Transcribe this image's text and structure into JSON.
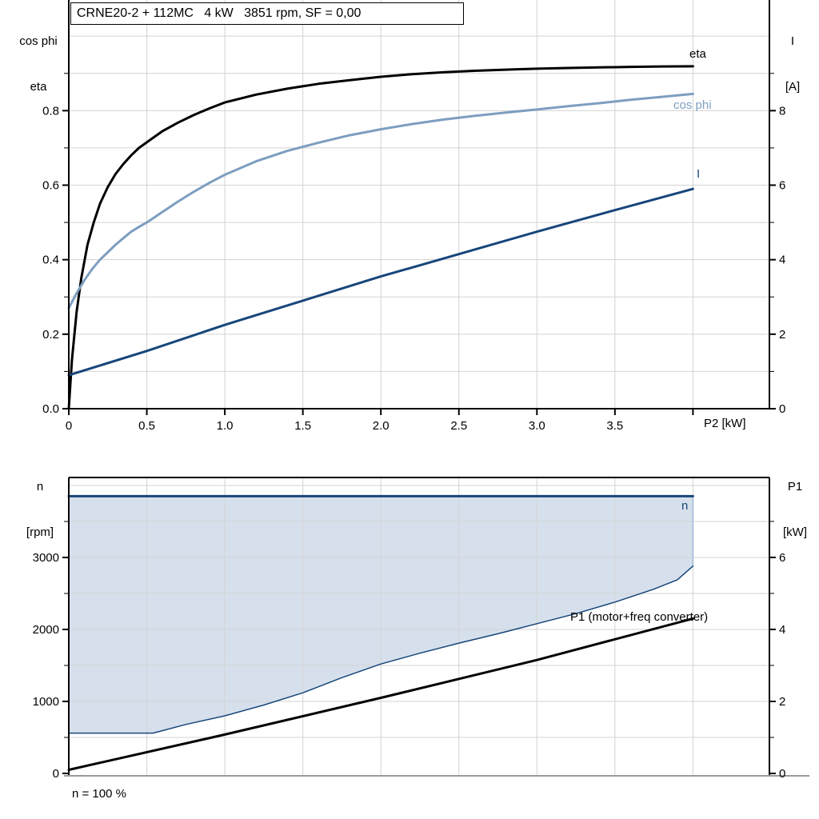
{
  "title": "CRNE20-2 + 112MC   4 kW   3851 rpm, SF = 0,00",
  "top_chart": {
    "y_left_label": [
      "cos phi",
      "eta"
    ],
    "y_right_label": [
      "I",
      "[A]"
    ],
    "x_label": "P2 [kW]",
    "curve_labels": {
      "eta": "eta",
      "cos_phi": "cos phi",
      "current": "I"
    }
  },
  "bottom_chart": {
    "y_left_label": [
      "n",
      "[rpm]"
    ],
    "y_right_label": [
      "P1",
      "[kW]"
    ],
    "curve_labels": {
      "n": "n",
      "p1": "P1 (motor+freq converter)"
    },
    "footnote": "n = 100 %"
  },
  "colors": {
    "black": "#000000",
    "dark_blue": "#17467A",
    "light_blue": "#7D9EC0",
    "area_fill": "#D6E0EC",
    "area_edge": "#9FB8D4",
    "grid": "#D3D3D3",
    "axis_gray": "#999999"
  },
  "chart_data": [
    {
      "type": "line",
      "title": "CRNE20-2 + 112MC   4 kW   3851 rpm, SF = 0,00",
      "xlabel": "P2 [kW]",
      "ylabel_left": "cos phi, eta",
      "ylabel_right": "I [A]",
      "xlim": [
        0,
        4.49
      ],
      "ylim_left": [
        0,
        1.097
      ],
      "ylim_right": [
        0,
        10.97
      ],
      "grid": true,
      "x_ticks": {
        "major": [
          0,
          0.5,
          1,
          1.5,
          2,
          2.5,
          3,
          3.5,
          4
        ],
        "labels": [
          "0",
          "0.5",
          "1.0",
          "1.5",
          "2.0",
          "2.5",
          "3.0",
          "3.5",
          ""
        ]
      },
      "y_left_ticks": {
        "major": [
          0,
          0.2,
          0.4,
          0.6,
          0.8
        ],
        "labels": [
          "0.0",
          "0.2",
          "0.4",
          "0.6",
          "0.8"
        ],
        "minor": [
          0.1,
          0.3,
          0.5,
          0.7,
          0.9
        ]
      },
      "y_right_ticks": {
        "major": [
          0,
          2,
          4,
          6,
          8
        ],
        "labels": [
          "0",
          "2",
          "4",
          "6",
          "8"
        ],
        "minor": [
          1,
          3,
          5,
          7,
          9
        ]
      },
      "grid_x_values": [
        0.5,
        1,
        1.5,
        2,
        2.5,
        3,
        3.5,
        4
      ],
      "grid_y_values": [
        0.1,
        0.2,
        0.3,
        0.4,
        0.5,
        0.6,
        0.7,
        0.8,
        0.9,
        1.0
      ],
      "series": [
        {
          "name": "eta",
          "axis": "left",
          "color_key": "black",
          "width": 3,
          "points": [
            [
              0,
              0
            ],
            [
              0.02,
              0.13
            ],
            [
              0.05,
              0.26
            ],
            [
              0.08,
              0.35
            ],
            [
              0.12,
              0.44
            ],
            [
              0.16,
              0.5
            ],
            [
              0.2,
              0.55
            ],
            [
              0.25,
              0.595
            ],
            [
              0.3,
              0.63
            ],
            [
              0.35,
              0.657
            ],
            [
              0.4,
              0.68
            ],
            [
              0.45,
              0.7
            ],
            [
              0.5,
              0.715
            ],
            [
              0.6,
              0.745
            ],
            [
              0.7,
              0.768
            ],
            [
              0.8,
              0.788
            ],
            [
              0.9,
              0.806
            ],
            [
              1.0,
              0.822
            ],
            [
              1.2,
              0.843
            ],
            [
              1.4,
              0.859
            ],
            [
              1.6,
              0.872
            ],
            [
              1.8,
              0.882
            ],
            [
              2.0,
              0.891
            ],
            [
              2.2,
              0.898
            ],
            [
              2.4,
              0.903
            ],
            [
              2.6,
              0.907
            ],
            [
              2.8,
              0.91
            ],
            [
              3.0,
              0.9125
            ],
            [
              3.2,
              0.9145
            ],
            [
              3.4,
              0.916
            ],
            [
              3.6,
              0.9175
            ],
            [
              3.8,
              0.9185
            ],
            [
              4.0,
              0.919
            ]
          ]
        },
        {
          "name": "cos phi",
          "axis": "left",
          "color_key": "light_blue",
          "width": 3,
          "points": [
            [
              0,
              0.27
            ],
            [
              0.05,
              0.31
            ],
            [
              0.1,
              0.345
            ],
            [
              0.15,
              0.375
            ],
            [
              0.2,
              0.4
            ],
            [
              0.25,
              0.42
            ],
            [
              0.3,
              0.44
            ],
            [
              0.35,
              0.458
            ],
            [
              0.4,
              0.475
            ],
            [
              0.45,
              0.488
            ],
            [
              0.5,
              0.5
            ],
            [
              0.6,
              0.528
            ],
            [
              0.7,
              0.556
            ],
            [
              0.8,
              0.582
            ],
            [
              0.9,
              0.606
            ],
            [
              1.0,
              0.628
            ],
            [
              1.2,
              0.664
            ],
            [
              1.4,
              0.692
            ],
            [
              1.6,
              0.714
            ],
            [
              1.8,
              0.734
            ],
            [
              2.0,
              0.75
            ],
            [
              2.2,
              0.764
            ],
            [
              2.4,
              0.776
            ],
            [
              2.6,
              0.786
            ],
            [
              2.8,
              0.795
            ],
            [
              3.0,
              0.803
            ],
            [
              3.2,
              0.812
            ],
            [
              3.4,
              0.82
            ],
            [
              3.6,
              0.829
            ],
            [
              3.8,
              0.837
            ],
            [
              4.0,
              0.845
            ]
          ]
        },
        {
          "name": "I",
          "axis": "right",
          "color_key": "dark_blue",
          "width": 3,
          "points": [
            [
              0,
              0.9
            ],
            [
              0.5,
              1.55
            ],
            [
              1.0,
              2.25
            ],
            [
              1.5,
              2.9
            ],
            [
              2.0,
              3.55
            ],
            [
              2.5,
              4.15
            ],
            [
              3.0,
              4.75
            ],
            [
              3.5,
              5.33
            ],
            [
              4.0,
              5.9
            ]
          ]
        }
      ]
    },
    {
      "type": "line",
      "title": "",
      "xlabel": "",
      "ylabel_left": "n [rpm]",
      "ylabel_right": "P1 [kW]",
      "xlim": [
        0,
        4.49
      ],
      "ylim_left": [
        0,
        4111
      ],
      "ylim_right": [
        0,
        8.22
      ],
      "grid": true,
      "x_ticks": {
        "major": [],
        "labels": []
      },
      "y_left_ticks": {
        "major": [
          0,
          1000,
          2000,
          3000
        ],
        "labels": [
          "0",
          "1000",
          "2000",
          "3000"
        ],
        "minor": [
          500,
          1500,
          2500,
          3500
        ]
      },
      "y_right_ticks": {
        "major": [
          0,
          2,
          4,
          6
        ],
        "labels": [
          "0",
          "2",
          "4",
          "6"
        ],
        "minor": [
          1,
          3,
          5,
          7
        ]
      },
      "grid_x_values": [
        0.5,
        1,
        1.5,
        2,
        2.5,
        3,
        3.5,
        4
      ],
      "grid_y_values": [
        500,
        1000,
        1500,
        2000,
        2500,
        3000,
        3500,
        4000
      ],
      "area": {
        "upper_rpm": 3851,
        "fill_key": "area_fill",
        "right_edge_key": "area_edge",
        "lower_points": [
          [
            0,
            560
          ],
          [
            0.54,
            560
          ],
          [
            0.75,
            680
          ],
          [
            1.0,
            800
          ],
          [
            1.25,
            950
          ],
          [
            1.5,
            1120
          ],
          [
            1.75,
            1330
          ],
          [
            2.0,
            1520
          ],
          [
            2.25,
            1670
          ],
          [
            2.5,
            1810
          ],
          [
            2.75,
            1940
          ],
          [
            3.0,
            2080
          ],
          [
            3.25,
            2220
          ],
          [
            3.5,
            2380
          ],
          [
            3.75,
            2560
          ],
          [
            3.9,
            2690
          ],
          [
            4.0,
            2880
          ]
        ]
      },
      "series": [
        {
          "name": "n",
          "axis": "left",
          "color_key": "dark_blue",
          "width": 3,
          "points": [
            [
              0,
              3851
            ],
            [
              4,
              3851
            ]
          ]
        },
        {
          "name": "n min boundary",
          "axis": "left",
          "color_key": "dark_blue",
          "width": 1.5,
          "points": [
            [
              0,
              560
            ],
            [
              0.54,
              560
            ],
            [
              0.75,
              680
            ],
            [
              1.0,
              800
            ],
            [
              1.25,
              950
            ],
            [
              1.5,
              1120
            ],
            [
              1.75,
              1330
            ],
            [
              2.0,
              1520
            ],
            [
              2.25,
              1670
            ],
            [
              2.5,
              1810
            ],
            [
              2.75,
              1940
            ],
            [
              3.0,
              2080
            ],
            [
              3.25,
              2220
            ],
            [
              3.5,
              2380
            ],
            [
              3.75,
              2560
            ],
            [
              3.9,
              2690
            ],
            [
              4.0,
              2880
            ]
          ]
        },
        {
          "name": "P1 (motor+freq converter)",
          "axis": "right",
          "color_key": "black",
          "width": 3,
          "points": [
            [
              0,
              0.1
            ],
            [
              1.0,
              1.08
            ],
            [
              2.0,
              2.1
            ],
            [
              3.0,
              3.15
            ],
            [
              4.0,
              4.3
            ]
          ]
        }
      ],
      "annotations": [
        "n = 100 %"
      ]
    }
  ]
}
